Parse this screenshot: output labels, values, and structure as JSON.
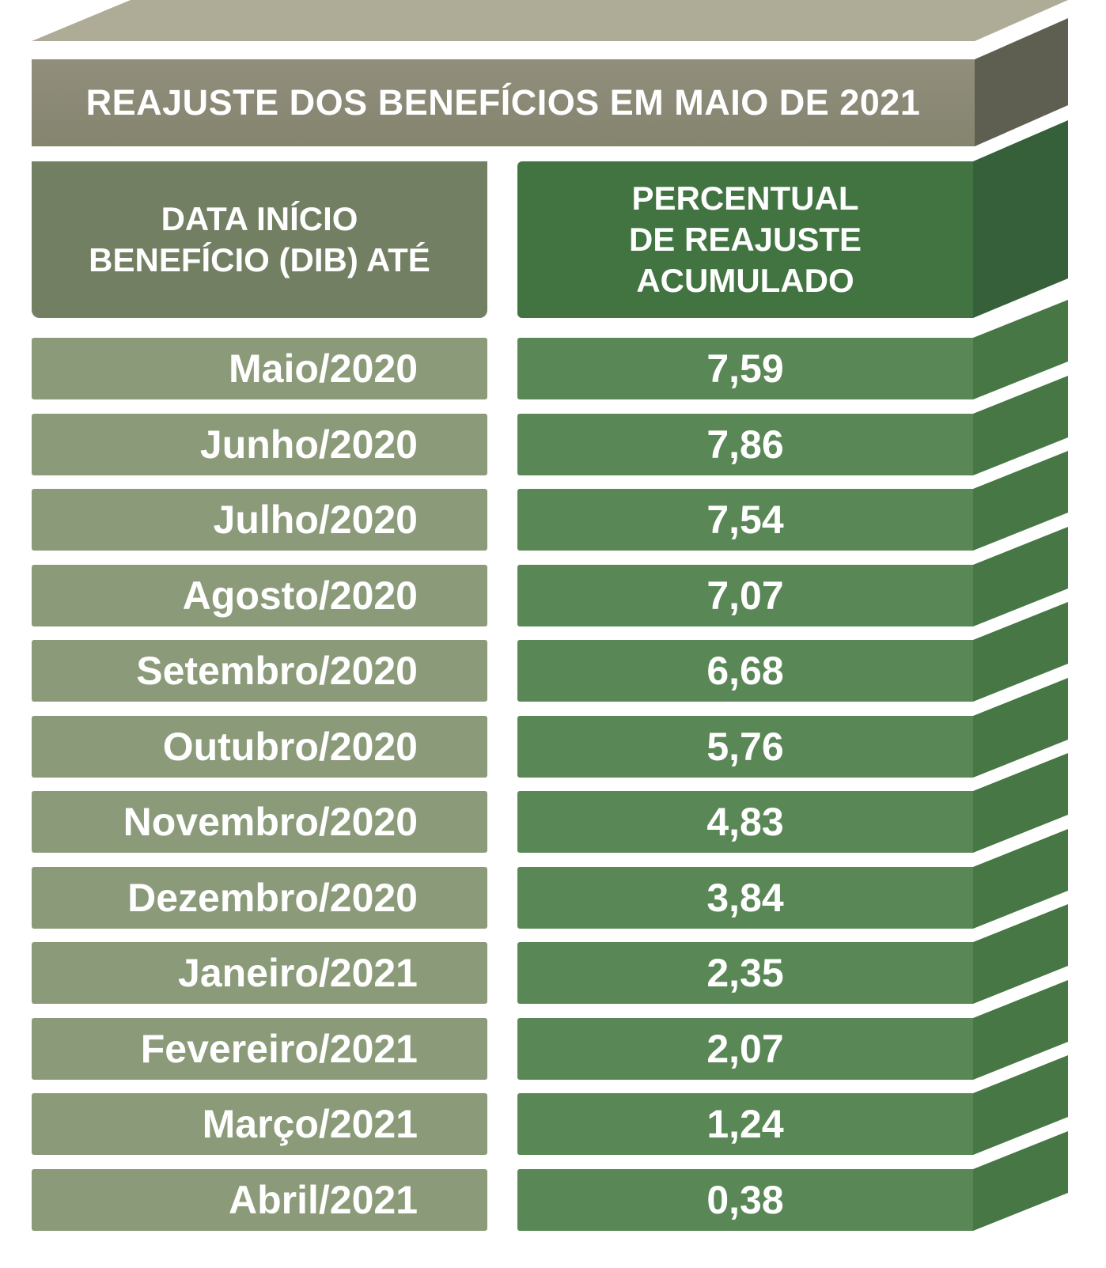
{
  "title": "REAJUSTE DOS BENEFÍCIOS EM MAIO DE 2021",
  "header": {
    "dib_lines": [
      "DATA INÍCIO",
      "BENEFÍCIO (DIB) ATÉ"
    ],
    "percent_lines": [
      "PERCENTUAL",
      "DE REAJUSTE",
      "ACUMULADO"
    ]
  },
  "rows": [
    {
      "dib": "Maio/2020",
      "percent": "7,59"
    },
    {
      "dib": "Junho/2020",
      "percent": "7,86"
    },
    {
      "dib": "Julho/2020",
      "percent": "7,54"
    },
    {
      "dib": "Agosto/2020",
      "percent": "7,07"
    },
    {
      "dib": "Setembro/2020",
      "percent": "6,68"
    },
    {
      "dib": "Outubro/2020",
      "percent": "5,76"
    },
    {
      "dib": "Novembro/2020",
      "percent": "4,83"
    },
    {
      "dib": "Dezembro/2020",
      "percent": "3,84"
    },
    {
      "dib": "Janeiro/2021",
      "percent": "2,35"
    },
    {
      "dib": "Fevereiro/2021",
      "percent": "2,07"
    },
    {
      "dib": "Março/2021",
      "percent": "1,24"
    },
    {
      "dib": "Abril/2021",
      "percent": "0,38"
    }
  ],
  "colors": {
    "title_top": "#aeab96",
    "title_front": "#8a8975",
    "title_side": "#5e5f50",
    "dib_header": "#737f62",
    "percent_header": "#417441",
    "percent_header_side": "#36603a",
    "dib_cell": "#8b9a78",
    "percent_cell": "#5a8756",
    "percent_cell_side": "#467744"
  }
}
